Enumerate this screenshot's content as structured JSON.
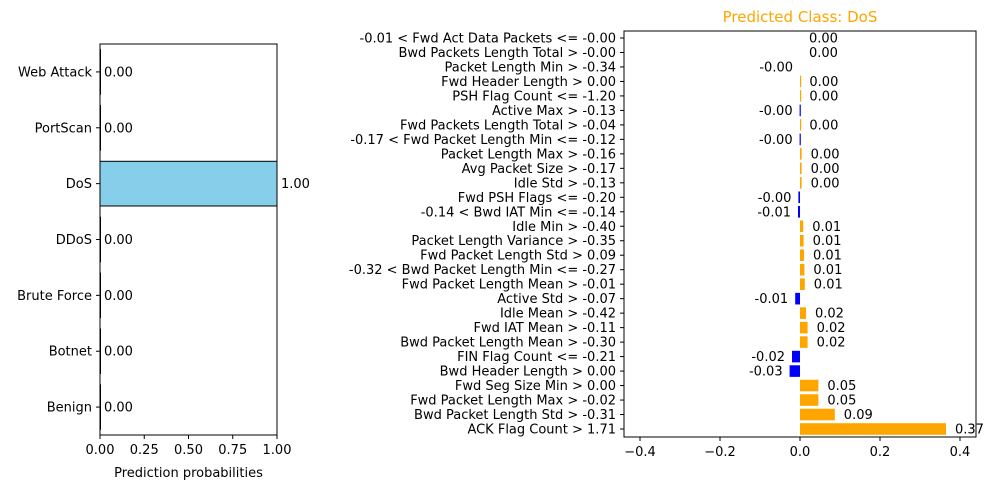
{
  "chart_data": [
    {
      "type": "bar",
      "orientation": "horizontal",
      "title": "",
      "xlabel": "Prediction probabilities",
      "ylabel": "",
      "xlim": [
        0,
        1
      ],
      "xticks": [
        "0.00",
        "0.25",
        "0.50",
        "0.75",
        "1.00"
      ],
      "grid": false,
      "highlight_color": "#87CEEB",
      "categories": [
        "Web Attack",
        "PortScan",
        "DoS",
        "DDoS",
        "Brute Force",
        "Botnet",
        "Benign"
      ],
      "values": [
        0.0,
        0.0,
        1.0,
        0.0,
        0.0,
        0.0,
        0.0
      ],
      "value_labels": [
        "0.00",
        "0.00",
        "1.00",
        "0.00",
        "0.00",
        "0.00",
        "0.00"
      ]
    },
    {
      "type": "bar",
      "orientation": "horizontal",
      "title": "Predicted Class: DoS",
      "title_color": "#FFA500",
      "xlabel": "",
      "ylabel": "",
      "xlim": [
        -0.44,
        0.44
      ],
      "xticks": [
        "−0.4",
        "−0.2",
        "0.0",
        "0.2",
        "0.4"
      ],
      "grid": false,
      "positive_color": "#FFA500",
      "negative_color": "#0000FF",
      "categories": [
        "-0.01 < Fwd Act Data Packets <= -0.00",
        "Bwd Packets Length Total > -0.00",
        "Packet Length Min > -0.34",
        "Fwd Header Length > 0.00",
        "PSH Flag Count <= -1.20",
        "Active Max > -0.13",
        "Fwd Packets Length Total > -0.04",
        "-0.17 < Fwd Packet Length Min <= -0.12",
        "Packet Length Max > -0.16",
        "Avg Packet Size > -0.17",
        "Idle Std > -0.13",
        "Fwd PSH Flags <= -0.20",
        "-0.14 < Bwd IAT Min <= -0.14",
        "Idle Min > -0.40",
        "Packet Length Variance > -0.35",
        "Fwd Packet Length Std > 0.09",
        "-0.32 < Bwd Packet Length Min <= -0.27",
        "Fwd Packet Length Mean > -0.01",
        "Active Std > -0.07",
        "Idle Mean > -0.42",
        "Fwd IAT Mean > -0.11",
        "Bwd Packet Length Mean > -0.30",
        "FIN Flag Count <= -0.21",
        "Bwd Header Length > 0.00",
        "Fwd Seg Size Min > 0.00",
        "Fwd Packet Length Max > -0.02",
        "Bwd Packet Length Std > -0.31",
        "ACK Flag Count > 1.71"
      ],
      "values": [
        0.0,
        0.0,
        -0.0,
        0.001,
        0.001,
        -0.001,
        0.001,
        -0.001,
        0.004,
        0.004,
        0.004,
        -0.004,
        -0.005,
        0.008,
        0.009,
        0.01,
        0.011,
        0.012,
        -0.012,
        0.015,
        0.019,
        0.019,
        -0.02,
        -0.026,
        0.046,
        0.046,
        0.087,
        0.365
      ],
      "value_labels": [
        "0.00",
        "0.00",
        "-0.00",
        "0.00",
        "0.00",
        "-0.00",
        "0.00",
        "-0.00",
        "0.00",
        "0.00",
        "0.00",
        "-0.00",
        "-0.01",
        "0.01",
        "0.01",
        "0.01",
        "0.01",
        "0.01",
        "-0.01",
        "0.02",
        "0.02",
        "0.02",
        "-0.02",
        "-0.03",
        "0.05",
        "0.05",
        "0.09",
        "0.37"
      ]
    }
  ]
}
